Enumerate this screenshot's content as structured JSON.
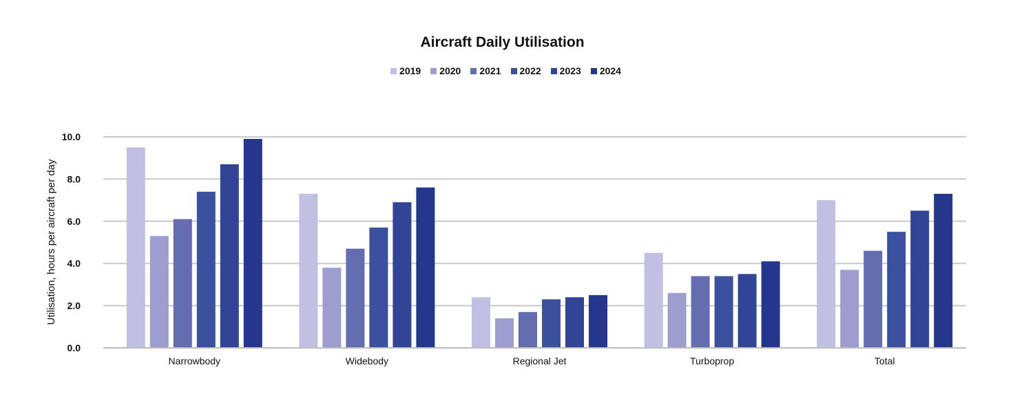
{
  "chart_data": {
    "type": "bar",
    "title": "Aircraft Daily Utilisation",
    "xlabel": "",
    "ylabel": "Utilisation, hours per aircraft per day",
    "ylim": [
      0,
      10
    ],
    "yticks": [
      "0.0",
      "2.0",
      "4.0",
      "6.0",
      "8.0",
      "10.0"
    ],
    "grid": true,
    "legend_position": "top",
    "categories": [
      "Narrowbody",
      "Widebody",
      "Regional Jet",
      "Turboprop",
      "Total"
    ],
    "series": [
      {
        "name": "2019",
        "color": "#c0c1e2",
        "values": [
          9.5,
          7.3,
          2.4,
          4.5,
          7.0
        ]
      },
      {
        "name": "2020",
        "color": "#9d9ecf",
        "values": [
          5.3,
          3.8,
          1.4,
          2.6,
          3.7
        ]
      },
      {
        "name": "2021",
        "color": "#646db0",
        "values": [
          6.1,
          4.7,
          1.7,
          3.4,
          4.6
        ]
      },
      {
        "name": "2022",
        "color": "#3b519e",
        "values": [
          7.4,
          5.7,
          2.3,
          3.4,
          5.5
        ]
      },
      {
        "name": "2023",
        "color": "#324496",
        "values": [
          8.7,
          6.9,
          2.4,
          3.5,
          6.5
        ]
      },
      {
        "name": "2024",
        "color": "#25378d",
        "values": [
          9.9,
          7.6,
          2.5,
          4.1,
          7.3
        ]
      }
    ]
  }
}
